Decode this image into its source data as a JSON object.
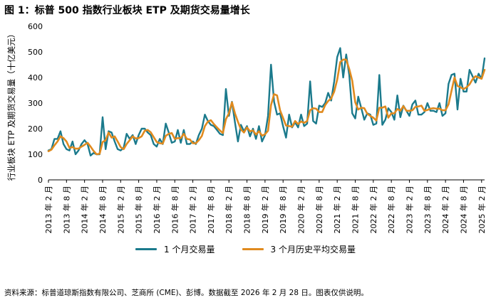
{
  "title": "图 1：标普 500 指数行业板块 ETP 及期货交易量增长",
  "source": "资料来源：标普道琼斯指数有限公司、芝商所 (CME)、彭博。数据截至 2026 年 2 月 28 日。图表仅供说明。",
  "colors": {
    "monthly": "#1b7a8c",
    "avg": "#e08a1e"
  },
  "chart_data": {
    "type": "line",
    "title": "",
    "xlabel": "",
    "ylabel": "行业板块 ETP 及期货交易量（十亿美元）",
    "ylim": [
      0,
      600
    ],
    "yticks": [
      0,
      100,
      200,
      300,
      400,
      500,
      600
    ],
    "grid": false,
    "legend_position": "bottom",
    "x_tick_labels": [
      "2013 年 2 月",
      "2013 年 8 月",
      "2014 年 2 月",
      "2014 年 8 月",
      "2015 年 2 月",
      "2015 年 8 月",
      "2016 年 2 月",
      "2016 年 8 月",
      "2017 年 2 月",
      "2017 年 8 月",
      "2018 年 2 月",
      "2018 年 8 月",
      "2019 年 2 月",
      "2019 年 8 月",
      "2020 年 2 月",
      "2020 年 8 月",
      "2021 年 2 月",
      "2021 年 8 月",
      "2022 年 2 月",
      "2022 年 8 月",
      "2023 年 2 月",
      "2023 年 8 月",
      "2024 年 2 月",
      "2024 年 8 月",
      "2025 年 2 月"
    ],
    "x_start": "2013-02",
    "x_end": "2026-02",
    "series": [
      {
        "name": "1 个月交易量",
        "values": [
          115,
          120,
          160,
          160,
          190,
          140,
          120,
          115,
          150,
          100,
          115,
          140,
          155,
          140,
          95,
          105,
          100,
          100,
          245,
          120,
          190,
          185,
          150,
          120,
          115,
          125,
          180,
          160,
          175,
          140,
          175,
          200,
          200,
          185,
          175,
          140,
          130,
          160,
          140,
          220,
          185,
          145,
          150,
          195,
          145,
          195,
          140,
          140,
          150,
          140,
          175,
          200,
          255,
          230,
          215,
          210,
          195,
          180,
          175,
          355,
          250,
          305,
          225,
          150,
          215,
          190,
          210,
          170,
          200,
          160,
          210,
          150,
          175,
          250,
          450,
          305,
          255,
          260,
          210,
          165,
          255,
          205,
          225,
          205,
          255,
          210,
          220,
          385,
          230,
          220,
          290,
          285,
          300,
          340,
          310,
          385,
          480,
          515,
          400,
          490,
          410,
          260,
          240,
          325,
          280,
          235,
          260,
          255,
          215,
          220,
          410,
          215,
          235,
          280,
          265,
          235,
          330,
          245,
          290,
          270,
          250,
          295,
          310,
          255,
          255,
          265,
          300,
          270,
          270,
          265,
          300,
          250,
          260,
          375,
          410,
          415,
          275,
          395,
          345,
          345,
          430,
          405,
          380,
          415,
          395,
          475
        ]
      },
      {
        "name": "3 个月历史平均交易量",
        "values": [
          112,
          118,
          135,
          150,
          170,
          163,
          150,
          125,
          128,
          122,
          122,
          130,
          137,
          145,
          130,
          113,
          100,
          102,
          148,
          155,
          185,
          165,
          170,
          150,
          128,
          120,
          140,
          155,
          170,
          162,
          163,
          170,
          192,
          195,
          186,
          167,
          148,
          143,
          142,
          172,
          180,
          183,
          160,
          163,
          163,
          180,
          160,
          158,
          143,
          143,
          155,
          172,
          210,
          228,
          233,
          218,
          205,
          193,
          183,
          237,
          260,
          303,
          260,
          227,
          197,
          185,
          205,
          190,
          193,
          177,
          190,
          173,
          178,
          192,
          292,
          335,
          330,
          272,
          242,
          212,
          210,
          208,
          230,
          218,
          228,
          223,
          230,
          272,
          280,
          278,
          265,
          265,
          292,
          308,
          318,
          345,
          392,
          460,
          470,
          470,
          433,
          387,
          303,
          275,
          282,
          280,
          258,
          250,
          243,
          232,
          282,
          282,
          287,
          243,
          260,
          260,
          277,
          270,
          288,
          270,
          270,
          272,
          285,
          287,
          290,
          270,
          273,
          278,
          280,
          278,
          278,
          272,
          272,
          295,
          348,
          400,
          367,
          362,
          355,
          362,
          373,
          393,
          405,
          400,
          395,
          430
        ]
      }
    ]
  }
}
